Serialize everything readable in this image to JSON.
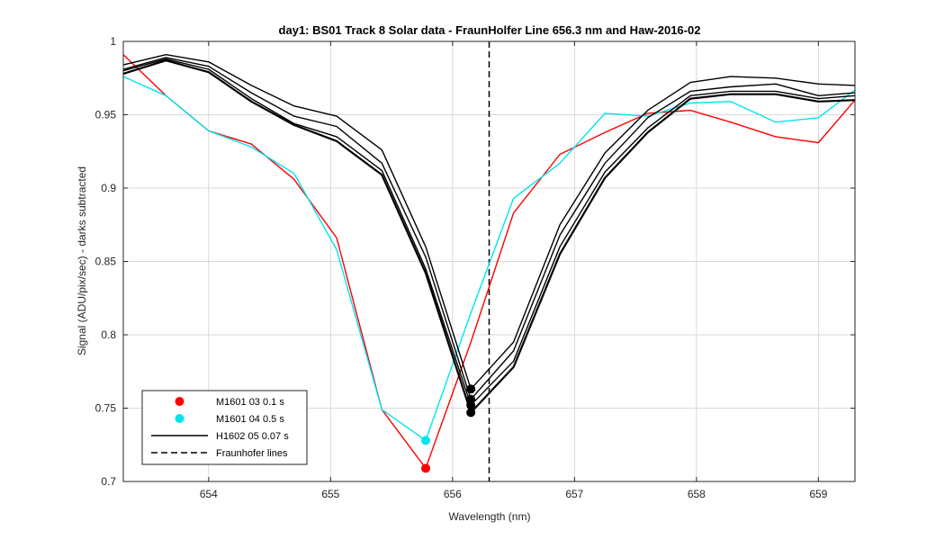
{
  "chart_data": {
    "type": "line",
    "title": "day1: BS01  Track 8 Solar data - FraunHolfer Line 656.3 nm and Haw-2016-02",
    "xlabel": "Wavelength (nm)",
    "ylabel": "Signal (ADU/pix/sec) - darks subtracted",
    "xlim": [
      653.3,
      659.3
    ],
    "ylim": [
      0.7,
      1.0
    ],
    "xticks": [
      654,
      655,
      656,
      657,
      658,
      659
    ],
    "xtick_labels": [
      "654",
      "655",
      "656",
      "657",
      "658",
      "659"
    ],
    "yticks": [
      0.7,
      0.75,
      0.8,
      0.85,
      0.9,
      0.95,
      1.0
    ],
    "ytick_labels": [
      "0.7",
      "0.75",
      "0.8",
      "0.85",
      "0.9",
      "0.95",
      "1"
    ],
    "grid": true,
    "legend_position": "bottom-left",
    "series": [
      {
        "name": "M1601 03 0.1 s",
        "color": "#ff0000",
        "x": [
          653.3,
          653.65,
          654.0,
          654.35,
          654.7,
          655.05,
          655.42,
          655.78,
          656.15,
          656.5,
          656.88,
          657.25,
          657.6,
          657.95,
          658.28,
          658.65,
          659.0,
          659.3
        ],
        "y": [
          0.991,
          0.963,
          0.939,
          0.93,
          0.906,
          0.866,
          0.749,
          0.709,
          0.795,
          0.883,
          0.923,
          0.938,
          0.951,
          0.953,
          0.945,
          0.935,
          0.931,
          0.96
        ],
        "marker": {
          "x": 655.78,
          "y": 0.709
        }
      },
      {
        "name": "M1601 04 0.5 s",
        "color": "#00e5ee",
        "x": [
          653.3,
          653.65,
          654.0,
          654.35,
          654.7,
          655.05,
          655.42,
          655.78,
          656.15,
          656.5,
          656.88,
          657.25,
          657.6,
          657.95,
          658.28,
          658.65,
          659.0,
          659.3
        ],
        "y": [
          0.976,
          0.963,
          0.939,
          0.928,
          0.91,
          0.858,
          0.749,
          0.728,
          0.815,
          0.893,
          0.917,
          0.951,
          0.949,
          0.958,
          0.959,
          0.945,
          0.948,
          0.967
        ],
        "marker": {
          "x": 655.78,
          "y": 0.728
        }
      },
      {
        "name": "H1602 05 0.07 s",
        "color": "#000000",
        "x": [
          653.3,
          653.65,
          654.0,
          654.35,
          654.7,
          655.05,
          655.42,
          655.78,
          656.15,
          656.5,
          656.88,
          657.25,
          657.6,
          657.95,
          658.28,
          658.65,
          659.0,
          659.3
        ],
        "y": [
          0.984,
          0.991,
          0.986,
          0.97,
          0.956,
          0.949,
          0.926,
          0.86,
          0.763,
          0.795,
          0.875,
          0.924,
          0.953,
          0.972,
          0.976,
          0.975,
          0.971,
          0.97
        ],
        "marker": {
          "x": 656.15,
          "y": 0.763
        }
      },
      {
        "name": "",
        "color": "#000000",
        "x": [
          653.3,
          653.65,
          654.0,
          654.35,
          654.7,
          655.05,
          655.42,
          655.78,
          656.15,
          656.5,
          656.88,
          657.25,
          657.6,
          657.95,
          658.28,
          658.65,
          659.0,
          659.3
        ],
        "y": [
          0.981,
          0.989,
          0.983,
          0.965,
          0.949,
          0.942,
          0.917,
          0.853,
          0.756,
          0.789,
          0.868,
          0.917,
          0.948,
          0.966,
          0.969,
          0.971,
          0.963,
          0.965
        ],
        "marker": {
          "x": 656.15,
          "y": 0.756
        }
      },
      {
        "name": "",
        "color": "#000000",
        "x": [
          653.3,
          653.65,
          654.0,
          654.35,
          654.7,
          655.05,
          655.42,
          655.78,
          656.15,
          656.5,
          656.88,
          657.25,
          657.6,
          657.95,
          658.28,
          658.65,
          659.0,
          659.3
        ],
        "y": [
          0.98,
          0.988,
          0.981,
          0.961,
          0.944,
          0.935,
          0.912,
          0.845,
          0.752,
          0.782,
          0.86,
          0.911,
          0.941,
          0.963,
          0.966,
          0.966,
          0.961,
          0.963
        ],
        "marker": {
          "x": 656.15,
          "y": 0.752
        }
      },
      {
        "name": "",
        "color": "#000000",
        "x": [
          653.3,
          653.65,
          654.0,
          654.35,
          654.7,
          655.05,
          655.42,
          655.78,
          656.15,
          656.5,
          656.88,
          657.25,
          657.6,
          657.95,
          658.28,
          658.65,
          659.0,
          659.3
        ],
        "y": [
          0.978,
          0.987,
          0.979,
          0.959,
          0.943,
          0.932,
          0.909,
          0.842,
          0.747,
          0.778,
          0.855,
          0.907,
          0.938,
          0.961,
          0.964,
          0.964,
          0.959,
          0.96
        ],
        "marker": {
          "x": 656.15,
          "y": 0.747
        }
      }
    ],
    "vlines": [
      {
        "name": "Fraunhofer lines",
        "x": 656.3,
        "color": "#000000",
        "style": "dashed"
      }
    ],
    "legend": [
      {
        "label": "M1601 03 0.1 s",
        "kind": "marker",
        "color": "#ff0000"
      },
      {
        "label": "M1601 04 0.5 s",
        "kind": "marker",
        "color": "#00e5ee"
      },
      {
        "label": "H1602 05 0.07 s",
        "kind": "line",
        "color": "#000000"
      },
      {
        "label": "Fraunhofer lines",
        "kind": "dashed",
        "color": "#000000"
      }
    ]
  }
}
